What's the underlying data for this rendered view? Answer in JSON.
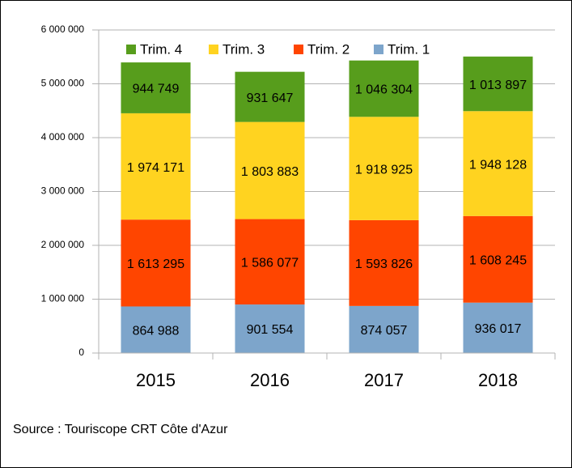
{
  "chart_data": {
    "type": "stacked_bar",
    "categories": [
      "2015",
      "2016",
      "2017",
      "2018"
    ],
    "series": [
      {
        "name": "Trim. 1",
        "color": "#7da5cb",
        "values": [
          864988,
          901554,
          874057,
          936017
        ],
        "value_labels": [
          "864 988",
          "901 554",
          "874 057",
          "936 017"
        ]
      },
      {
        "name": "Trim. 2",
        "color": "#ff4500",
        "values": [
          1613295,
          1586077,
          1593826,
          1608245
        ],
        "value_labels": [
          "1 613 295",
          "1 586 077",
          "1 593 826",
          "1 608 245"
        ]
      },
      {
        "name": "Trim. 3",
        "color": "#ffd320",
        "values": [
          1974171,
          1803883,
          1918925,
          1948128
        ],
        "value_labels": [
          "1 974 171",
          "1 803 883",
          "1 918 925",
          "1 948 128"
        ]
      },
      {
        "name": "Trim. 4",
        "color": "#579d1c",
        "values": [
          944749,
          931647,
          1046304,
          1013897
        ],
        "value_labels": [
          "944 749",
          "931 647",
          "1 046 304",
          "1 013 897"
        ]
      }
    ],
    "ylim": [
      0,
      6000000
    ],
    "yticks": [
      0,
      {
        "value": 1000000,
        "label": "1 000 000"
      },
      {
        "value": 2000000,
        "label": "2 000 000"
      },
      {
        "value": 3000000,
        "label": "3 000 000"
      },
      {
        "value": 4000000,
        "label": "4 000 000"
      },
      {
        "value": 5000000,
        "label": "5 000 000"
      },
      {
        "value": 6000000,
        "label": "6 000 000"
      }
    ],
    "grid": true,
    "legend": "top",
    "source": "Source : Touriscope CRT Côte d'Azur"
  }
}
